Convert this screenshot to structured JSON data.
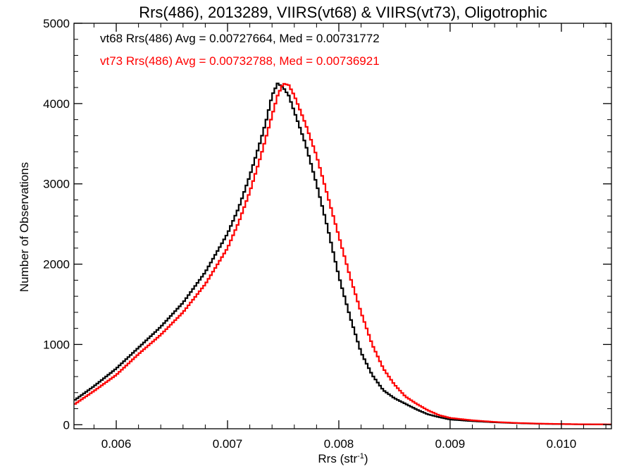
{
  "chart_data": {
    "type": "line",
    "title": "Rrs(486), 2013289, VIIRS(vt68) & VIIRS(vt73), Oligotrophic",
    "xlabel_main": "Rrs (str",
    "xlabel_sup": "-1",
    "xlabel_close": ")",
    "ylabel": "Number of Observations",
    "xlim": [
      0.00562,
      0.01045
    ],
    "ylim": [
      -50,
      5000
    ],
    "xticks": [
      0.006,
      0.007,
      0.008,
      0.009,
      0.01
    ],
    "xtick_labels": [
      "0.006",
      "0.007",
      "0.008",
      "0.009",
      "0.010"
    ],
    "yticks": [
      0,
      1000,
      2000,
      3000,
      4000,
      5000
    ],
    "ytick_labels": [
      "0",
      "1000",
      "2000",
      "3000",
      "4000",
      "5000"
    ],
    "grid": false,
    "series": [
      {
        "name": "vt68",
        "color": "#000000",
        "stats_label": "vt68 Rrs(486) Avg = 0.00727664, Med = 0.00731772",
        "points": [
          [
            0.00562,
            300
          ],
          [
            0.0058,
            480
          ],
          [
            0.006,
            700
          ],
          [
            0.0062,
            960
          ],
          [
            0.0064,
            1220
          ],
          [
            0.0066,
            1520
          ],
          [
            0.0068,
            1900
          ],
          [
            0.007,
            2380
          ],
          [
            0.0071,
            2700
          ],
          [
            0.0072,
            3100
          ],
          [
            0.0073,
            3550
          ],
          [
            0.00735,
            3800
          ],
          [
            0.0074,
            4100
          ],
          [
            0.00745,
            4250
          ],
          [
            0.0075,
            4200
          ],
          [
            0.00755,
            4100
          ],
          [
            0.0076,
            3900
          ],
          [
            0.0077,
            3500
          ],
          [
            0.0078,
            3000
          ],
          [
            0.0079,
            2450
          ],
          [
            0.008,
            1850
          ],
          [
            0.0081,
            1350
          ],
          [
            0.0082,
            900
          ],
          [
            0.0083,
            620
          ],
          [
            0.0084,
            430
          ],
          [
            0.0085,
            330
          ],
          [
            0.0086,
            260
          ],
          [
            0.0087,
            190
          ],
          [
            0.0088,
            130
          ],
          [
            0.0089,
            95
          ],
          [
            0.009,
            65
          ],
          [
            0.0092,
            45
          ],
          [
            0.0094,
            30
          ],
          [
            0.0096,
            20
          ],
          [
            0.0098,
            12
          ],
          [
            0.01,
            8
          ],
          [
            0.0102,
            5
          ],
          [
            0.01045,
            3
          ]
        ]
      },
      {
        "name": "vt73",
        "color": "#ff0000",
        "stats_label": "vt73 Rrs(486) Avg = 0.00732788, Med = 0.00736921",
        "points": [
          [
            0.00562,
            250
          ],
          [
            0.0058,
            420
          ],
          [
            0.006,
            620
          ],
          [
            0.0062,
            880
          ],
          [
            0.0064,
            1120
          ],
          [
            0.0066,
            1400
          ],
          [
            0.0068,
            1750
          ],
          [
            0.007,
            2200
          ],
          [
            0.0071,
            2520
          ],
          [
            0.0072,
            2900
          ],
          [
            0.0073,
            3350
          ],
          [
            0.0074,
            3850
          ],
          [
            0.00745,
            4100
          ],
          [
            0.0075,
            4250
          ],
          [
            0.00755,
            4230
          ],
          [
            0.0076,
            4100
          ],
          [
            0.0077,
            3750
          ],
          [
            0.0078,
            3350
          ],
          [
            0.0079,
            2850
          ],
          [
            0.008,
            2350
          ],
          [
            0.0081,
            1850
          ],
          [
            0.0082,
            1400
          ],
          [
            0.0083,
            1000
          ],
          [
            0.0084,
            700
          ],
          [
            0.0085,
            500
          ],
          [
            0.0086,
            350
          ],
          [
            0.0087,
            260
          ],
          [
            0.0088,
            180
          ],
          [
            0.0089,
            120
          ],
          [
            0.009,
            85
          ],
          [
            0.0092,
            55
          ],
          [
            0.0094,
            35
          ],
          [
            0.0096,
            22
          ],
          [
            0.0098,
            14
          ],
          [
            0.01,
            9
          ],
          [
            0.0102,
            6
          ],
          [
            0.01045,
            4
          ]
        ]
      }
    ]
  }
}
